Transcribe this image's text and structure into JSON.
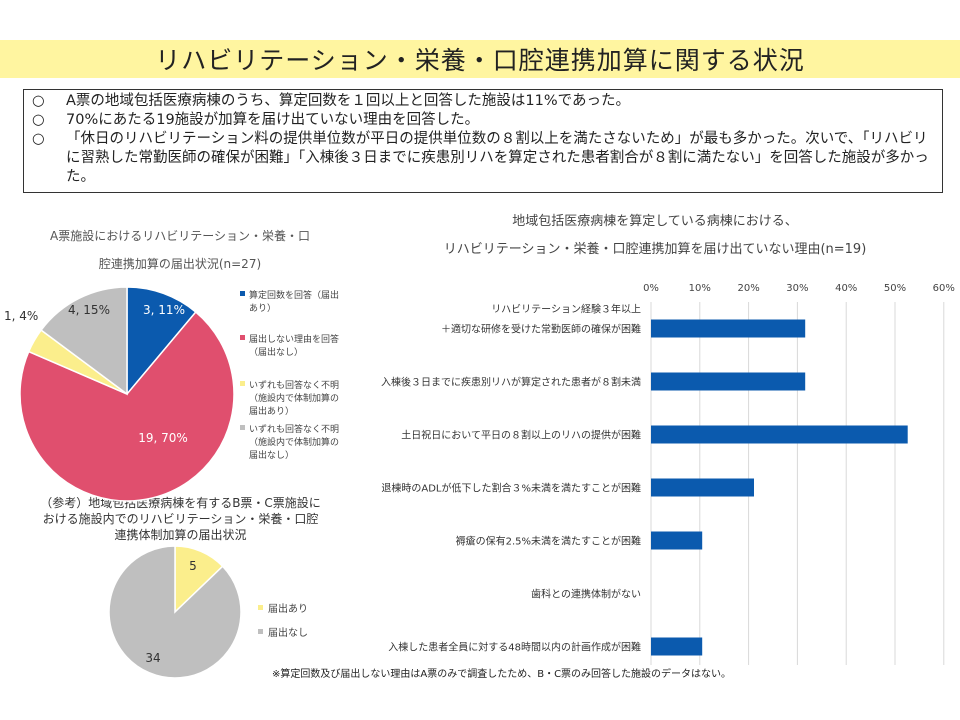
{
  "header": {
    "title": "リハビリテーション・栄養・口腔連携加算に関する状況"
  },
  "summary": {
    "marker": "○",
    "bullets": [
      "A票の地域包括医療病棟のうち、算定回数を１回以上と回答した施設は11%であった。",
      "70%にあたる19施設が加算を届け出ていない理由を回答した。",
      "「休日のリハビリテーション料の提供単位数が平日の提供単位数の８割以上を満たさないため」が最も多かった。次いで、「リハビリに習熟した常勤医師の確保が困難」「入棟後３日までに疾患別リハを算定された患者割合が８割に満たない」を回答した施設が多かった。"
    ]
  },
  "footnote": "※算定回数及び届出しない理由はA票のみで調査したため、B・C票のみ回答した施設のデータはない。",
  "chart_data": [
    {
      "type": "pie",
      "title_line1": "A票施設におけるリハビリテーション・栄養・口",
      "title_line2": "腔連携加算の届出状況(n=27)",
      "slices": [
        {
          "label": "算定回数を回答（届出あり）",
          "legend_lines": [
            "算定回数を回答（届出",
            "あり）"
          ],
          "value": 3,
          "percent": 11,
          "data_label": "3, 11%",
          "color": "#0b5aae"
        },
        {
          "label": "届出しない理由を回答（届出なし）",
          "legend_lines": [
            "届出しない理由を回答",
            "（届出なし）"
          ],
          "value": 19,
          "percent": 70,
          "data_label": "19, 70%",
          "color": "#e04f6e"
        },
        {
          "label": "いずれも回答なく不明（施設内で体制加算の届出あり）",
          "legend_lines": [
            "いずれも回答なく不明",
            "（施設内で体制加算の",
            "届出あり）"
          ],
          "value": 1,
          "percent": 4,
          "data_label": "1, 4%",
          "color": "#fbee8c"
        },
        {
          "label": "いずれも回答なく不明（施設内で体制加算の届出なし）",
          "legend_lines": [
            "いずれも回答なく不明",
            "（施設内で体制加算の",
            "届出なし）"
          ],
          "value": 4,
          "percent": 15,
          "data_label": "4, 15%",
          "color": "#bfbfbf"
        }
      ]
    },
    {
      "type": "pie",
      "title_line1": "（参考）地域包括医療病棟を有するB票・C票施設に",
      "title_line2": "おける施設内でのリハビリテーション・栄養・口腔",
      "title_line3": "連携体制加算の届出状況",
      "slices": [
        {
          "label": "届出あり",
          "value": 5,
          "data_label": "5",
          "color": "#fbee8c"
        },
        {
          "label": "届出なし",
          "value": 34,
          "data_label": "34",
          "color": "#bfbfbf"
        }
      ]
    },
    {
      "type": "bar",
      "orientation": "horizontal",
      "title_line1": "地域包括医療病棟を算定している病棟における、",
      "title_line2": "リハビリテーション・栄養・口腔連携加算を届け出ていない理由(n=19)",
      "xlim": [
        0,
        60
      ],
      "ticks": [
        0,
        10,
        20,
        30,
        40,
        50,
        60
      ],
      "tick_suffix": "%",
      "color": "#0b5aae",
      "categories": [
        {
          "lines": [
            "リハビリテーション経験３年以上",
            "＋適切な研修を受けた常勤医師の確保が困難"
          ],
          "value": 31.6
        },
        {
          "lines": [
            "入棟後３日までに疾患別リハが算定された患者が８割未満"
          ],
          "value": 31.6
        },
        {
          "lines": [
            "土日祝日において平日の８割以上のリハの提供が困難"
          ],
          "value": 52.6
        },
        {
          "lines": [
            "退棟時のADLが低下した割合３%未満を満たすことが困難"
          ],
          "value": 21.1
        },
        {
          "lines": [
            "褥瘡の保有2.5%未満を満たすことが困難"
          ],
          "value": 10.5
        },
        {
          "lines": [
            "歯科との連携体制がない"
          ],
          "value": 0
        },
        {
          "lines": [
            "入棟した患者全員に対する48時間以内の計画作成が困難"
          ],
          "value": 10.5
        }
      ]
    }
  ]
}
